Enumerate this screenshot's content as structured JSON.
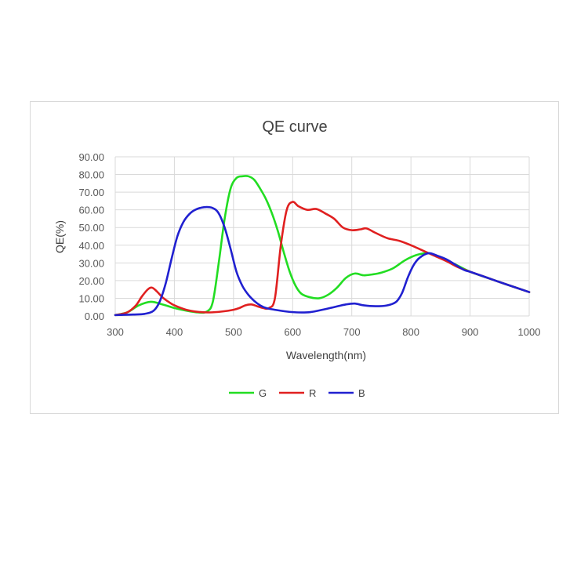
{
  "chart_data": {
    "type": "line",
    "title": "QE curve",
    "xlabel": "Wavelength(nm)",
    "ylabel": "QE(%)",
    "xlim": [
      300,
      1000
    ],
    "ylim": [
      0,
      90
    ],
    "xticks": [
      "300",
      "400",
      "500",
      "600",
      "700",
      "800",
      "900",
      "1000"
    ],
    "yticks": [
      "0.00",
      "10.00",
      "20.00",
      "30.00",
      "40.00",
      "50.00",
      "60.00",
      "70.00",
      "80.00",
      "90.00"
    ],
    "grid": "both",
    "legend_position": "bottom",
    "series": [
      {
        "name": "G",
        "color": "#22dd22",
        "points": [
          [
            300,
            0.5
          ],
          [
            320,
            2
          ],
          [
            340,
            6
          ],
          [
            360,
            8
          ],
          [
            380,
            6.5
          ],
          [
            400,
            4.5
          ],
          [
            420,
            3
          ],
          [
            440,
            2
          ],
          [
            455,
            2.5
          ],
          [
            465,
            8
          ],
          [
            475,
            30
          ],
          [
            485,
            55
          ],
          [
            495,
            72
          ],
          [
            505,
            78
          ],
          [
            515,
            79
          ],
          [
            525,
            79
          ],
          [
            535,
            77
          ],
          [
            545,
            72
          ],
          [
            555,
            66
          ],
          [
            565,
            58
          ],
          [
            575,
            48
          ],
          [
            585,
            36
          ],
          [
            595,
            25
          ],
          [
            605,
            17
          ],
          [
            615,
            12.5
          ],
          [
            630,
            10.5
          ],
          [
            645,
            10
          ],
          [
            660,
            12
          ],
          [
            675,
            16
          ],
          [
            690,
            21.5
          ],
          [
            705,
            24
          ],
          [
            720,
            23
          ],
          [
            735,
            23.5
          ],
          [
            750,
            24.5
          ],
          [
            770,
            27
          ],
          [
            790,
            31.5
          ],
          [
            810,
            34.5
          ],
          [
            830,
            35.5
          ],
          [
            850,
            33
          ],
          [
            870,
            30
          ],
          [
            900,
            25
          ],
          [
            930,
            21.5
          ],
          [
            960,
            18
          ],
          [
            1000,
            13.5
          ]
        ]
      },
      {
        "name": "R",
        "color": "#e02020",
        "points": [
          [
            300,
            0.5
          ],
          [
            320,
            2
          ],
          [
            335,
            6
          ],
          [
            345,
            11
          ],
          [
            355,
            15
          ],
          [
            362,
            16
          ],
          [
            370,
            14
          ],
          [
            380,
            10.5
          ],
          [
            390,
            8
          ],
          [
            400,
            6
          ],
          [
            420,
            3.5
          ],
          [
            440,
            2.3
          ],
          [
            460,
            2
          ],
          [
            480,
            2.5
          ],
          [
            500,
            3.5
          ],
          [
            510,
            4.5
          ],
          [
            520,
            6
          ],
          [
            530,
            6.5
          ],
          [
            540,
            5.5
          ],
          [
            550,
            4.5
          ],
          [
            560,
            4.5
          ],
          [
            570,
            10
          ],
          [
            580,
            40
          ],
          [
            590,
            60
          ],
          [
            600,
            64.5
          ],
          [
            610,
            62
          ],
          [
            625,
            60
          ],
          [
            640,
            60.5
          ],
          [
            655,
            58
          ],
          [
            670,
            55
          ],
          [
            685,
            50
          ],
          [
            700,
            48.5
          ],
          [
            715,
            49
          ],
          [
            725,
            49.5
          ],
          [
            740,
            47
          ],
          [
            760,
            44
          ],
          [
            780,
            42.5
          ],
          [
            800,
            40
          ],
          [
            820,
            37
          ],
          [
            840,
            34
          ],
          [
            860,
            31
          ],
          [
            880,
            27.5
          ],
          [
            900,
            25
          ],
          [
            930,
            21.5
          ],
          [
            960,
            18
          ],
          [
            1000,
            13.5
          ]
        ]
      },
      {
        "name": "B",
        "color": "#2020d0",
        "points": [
          [
            300,
            0.5
          ],
          [
            330,
            0.8
          ],
          [
            350,
            1.2
          ],
          [
            365,
            3
          ],
          [
            375,
            8
          ],
          [
            385,
            18
          ],
          [
            395,
            32
          ],
          [
            405,
            45
          ],
          [
            415,
            53
          ],
          [
            425,
            57.5
          ],
          [
            435,
            60
          ],
          [
            450,
            61.5
          ],
          [
            465,
            61
          ],
          [
            475,
            58
          ],
          [
            485,
            50
          ],
          [
            495,
            38
          ],
          [
            505,
            25
          ],
          [
            515,
            17
          ],
          [
            525,
            12
          ],
          [
            535,
            8.5
          ],
          [
            545,
            6
          ],
          [
            555,
            4.5
          ],
          [
            570,
            3.5
          ],
          [
            590,
            2.5
          ],
          [
            610,
            2
          ],
          [
            630,
            2.2
          ],
          [
            650,
            3.5
          ],
          [
            670,
            5
          ],
          [
            690,
            6.5
          ],
          [
            705,
            7
          ],
          [
            720,
            6
          ],
          [
            740,
            5.5
          ],
          [
            760,
            6
          ],
          [
            775,
            8
          ],
          [
            785,
            13
          ],
          [
            795,
            22
          ],
          [
            805,
            29
          ],
          [
            815,
            33
          ],
          [
            830,
            35.5
          ],
          [
            845,
            34
          ],
          [
            860,
            32
          ],
          [
            875,
            29
          ],
          [
            890,
            26
          ],
          [
            900,
            25
          ],
          [
            930,
            21.5
          ],
          [
            960,
            18
          ],
          [
            1000,
            13.5
          ]
        ]
      }
    ]
  }
}
